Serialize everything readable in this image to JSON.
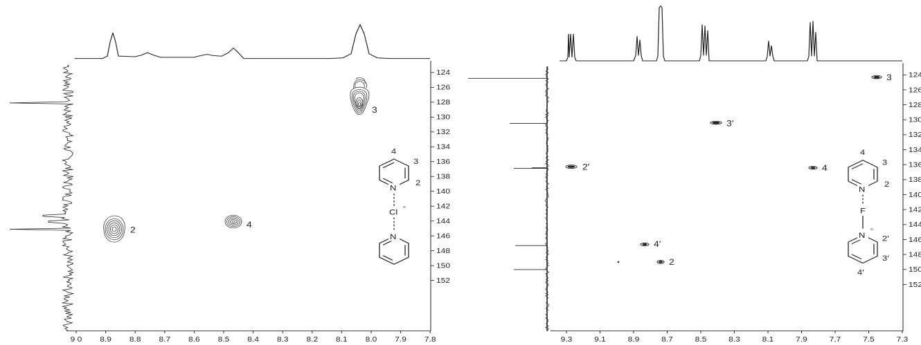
{
  "panels": [
    {
      "id": "left",
      "x_ticks": [
        "9 0",
        "8.9",
        "8.8",
        "8.7",
        "8.6",
        "8.5",
        "8.4",
        "8.3",
        "8.2",
        "8.1",
        "8.0",
        "7.9",
        "7.8"
      ],
      "y_ticks": [
        "124",
        "126",
        "128",
        "130",
        "132",
        "134",
        "136",
        "138",
        "140",
        "142",
        "144",
        "146",
        "148",
        "150",
        "152"
      ],
      "cross_peaks": [
        {
          "label": "3",
          "h_ppm": 8.02,
          "c_ppm": 129.5
        },
        {
          "label": "4",
          "h_ppm": 8.46,
          "c_ppm": 144.7
        },
        {
          "label": "2",
          "h_ppm": 8.86,
          "c_ppm": 145.6
        }
      ],
      "structure": {
        "bridge_atom": "Cl",
        "charge": "+",
        "top_ring_labels": [
          "4",
          "3",
          "2"
        ],
        "nitrogen": "N"
      }
    },
    {
      "id": "right",
      "x_ticks": [
        "9.3",
        "9.1",
        "8.9",
        "8.7",
        "8.5",
        "8.3",
        "8.1",
        "7.9",
        "7.7",
        "7.5",
        "7.3"
      ],
      "y_ticks": [
        "124",
        "126",
        "128",
        "130",
        "132",
        "134",
        "136",
        "138",
        "140",
        "142",
        "144",
        "146",
        "148",
        "150",
        "152"
      ],
      "cross_peaks": [
        {
          "label": "3",
          "h_ppm": 7.35,
          "c_ppm": 124.6
        },
        {
          "label": "3′",
          "h_ppm": 8.23,
          "c_ppm": 130.8
        },
        {
          "label": "2′",
          "h_ppm": 9.22,
          "c_ppm": 137.0
        },
        {
          "label": "4",
          "h_ppm": 7.75,
          "c_ppm": 137.1
        },
        {
          "label": "4′",
          "h_ppm": 8.64,
          "c_ppm": 147.6
        },
        {
          "label": "2",
          "h_ppm": 8.54,
          "c_ppm": 150.2
        }
      ],
      "structure": {
        "bridge_atom": "F",
        "charge": "+",
        "top_ring_labels": [
          "4",
          "3",
          "2"
        ],
        "bottom_ring_labels": [
          "2′",
          "3′",
          "4′"
        ],
        "nitrogen": "N"
      }
    }
  ]
}
